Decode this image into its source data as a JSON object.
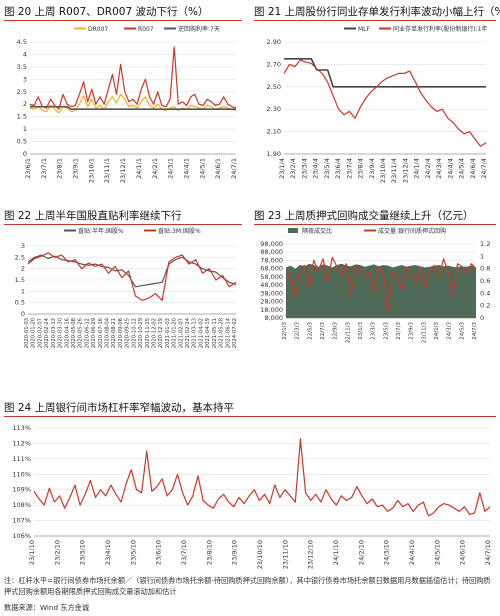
{
  "panels": {
    "p20": {
      "title": "图 20  上周 R007、DR007 波动下行（%）"
    },
    "p21": {
      "title": "图 21  上周股份行同业存单发行利率波动小幅上行（%）"
    },
    "p22": {
      "title": "图 22  上周半年国股直贴利率继续下行"
    },
    "p23": {
      "title": "图 23  上周质押式回购成交量继续上升（亿元）"
    },
    "p24": {
      "title": "图 24  上周银行间市场杠杆率窄幅波动，基本持平"
    }
  },
  "footer": {
    "note": "注：杠杆水平=银行间债券市场托余额／（银行间债券市场托余额-待回购质押式回购余额），其中银行债券市场托余额日数据用月数据插值估计；待回购质押式回购余额用各期限质押式回购成交量滚动加和估计",
    "source": "数据来源：Wind 东方金诚"
  },
  "colors": {
    "orange": "#f2b01e",
    "red": "#c9372c",
    "gray": "#555555",
    "darkgray": "#444444",
    "area": "#4f6b57",
    "title_rule": "#c9372c"
  },
  "chart_data": [
    {
      "id": "p20",
      "type": "line",
      "title": "图 20  上周 R007、DR007 波动下行（%）",
      "ylim": [
        0,
        4.5
      ],
      "yticks": [
        "0",
        "0.5",
        "1",
        "1.5",
        "2",
        "2.5",
        "3",
        "3.5",
        "4",
        "4.5"
      ],
      "x_ticks": [
        "23/6/1",
        "23/7/1",
        "23/8/1",
        "23/9/1",
        "23/10/1",
        "23/11/1",
        "23/12/1",
        "24/1/1",
        "24/2/1",
        "24/3/1",
        "24/4/1",
        "24/5/1",
        "24/6/1",
        "24/7/1"
      ],
      "legend_position": "top",
      "series": [
        {
          "name": "DR007",
          "color": "#f2b01e",
          "values": [
            1.85,
            1.8,
            1.9,
            1.75,
            1.7,
            1.95,
            1.8,
            1.65,
            1.9,
            1.85,
            1.7,
            1.75,
            2.0,
            2.35,
            1.9,
            2.2,
            1.85,
            1.95,
            1.8,
            2.1,
            2.3,
            2.05,
            2.4,
            2.2,
            1.9,
            1.95,
            1.85,
            2.1,
            2.3,
            1.95,
            1.85,
            2.0,
            1.8,
            1.75,
            1.85,
            1.9,
            1.75,
            1.85,
            1.8,
            1.95,
            1.9,
            1.85,
            1.8,
            1.95,
            1.9,
            1.8,
            1.85,
            1.9,
            1.85,
            1.8,
            1.75
          ]
        },
        {
          "name": "R007",
          "color": "#c9372c",
          "values": [
            2.0,
            1.95,
            2.3,
            1.9,
            1.85,
            2.2,
            1.95,
            1.8,
            2.4,
            2.0,
            1.9,
            1.95,
            2.4,
            2.9,
            2.1,
            2.6,
            2.0,
            2.3,
            2.0,
            2.6,
            3.2,
            2.4,
            3.6,
            2.5,
            2.1,
            2.2,
            2.0,
            2.6,
            3.0,
            2.3,
            2.0,
            2.5,
            1.95,
            1.9,
            2.2,
            4.3,
            2.0,
            2.1,
            1.95,
            2.3,
            2.4,
            2.0,
            1.95,
            2.2,
            2.1,
            1.95,
            2.0,
            2.3,
            2.0,
            1.9,
            1.85
          ]
        },
        {
          "name": "逆回购利率:7天",
          "color": "#555555",
          "values": [
            1.9,
            1.9,
            1.9,
            1.9,
            1.9,
            1.9,
            1.9,
            1.9,
            1.9,
            1.9,
            1.8,
            1.8,
            1.8,
            1.8,
            1.8,
            1.8,
            1.8,
            1.8,
            1.8,
            1.8,
            1.8,
            1.8,
            1.8,
            1.8,
            1.8,
            1.8,
            1.8,
            1.8,
            1.8,
            1.8,
            1.8,
            1.8,
            1.8,
            1.8,
            1.8,
            1.8,
            1.8,
            1.8,
            1.8,
            1.8,
            1.8,
            1.8,
            1.8,
            1.8,
            1.8,
            1.8,
            1.8,
            1.8,
            1.8,
            1.8,
            1.8
          ]
        }
      ]
    },
    {
      "id": "p21",
      "type": "line",
      "title": "图 21  上周股份行同业存单发行利率波动小幅上行（%）",
      "ylim": [
        1.9,
        2.9
      ],
      "yticks": [
        "1.90",
        "2.10",
        "2.30",
        "2.50",
        "2.70",
        "2.90"
      ],
      "x_ticks": [
        "23/1/4",
        "23/2/4",
        "23/3/4",
        "23/4/4",
        "23/5/4",
        "23/6/4",
        "23/7/4",
        "23/8/4",
        "23/9/4",
        "23/10/4",
        "23/11/4",
        "23/12/4",
        "24/1/4",
        "24/2/4",
        "24/3/4",
        "24/4/4",
        "24/5/4",
        "24/6/4",
        "24/7/4"
      ],
      "legend_position": "top",
      "series": [
        {
          "name": "MLF",
          "color": "#444444",
          "values": [
            2.75,
            2.75,
            2.75,
            2.75,
            2.75,
            2.75,
            2.65,
            2.65,
            2.65,
            2.5,
            2.5,
            2.5,
            2.5,
            2.5,
            2.5,
            2.5,
            2.5,
            2.5,
            2.5,
            2.5,
            2.5,
            2.5,
            2.5,
            2.5,
            2.5,
            2.5,
            2.5,
            2.5,
            2.5,
            2.5,
            2.5,
            2.5,
            2.5,
            2.5,
            2.5,
            2.5,
            2.5,
            2.5
          ]
        },
        {
          "name": "同业存单发行利率(股份制银行):1年",
          "color": "#c9372c",
          "values": [
            2.62,
            2.7,
            2.68,
            2.74,
            2.72,
            2.71,
            2.66,
            2.62,
            2.54,
            2.42,
            2.3,
            2.25,
            2.28,
            2.22,
            2.32,
            2.4,
            2.46,
            2.5,
            2.55,
            2.58,
            2.6,
            2.62,
            2.62,
            2.64,
            2.55,
            2.45,
            2.38,
            2.32,
            2.28,
            2.3,
            2.22,
            2.18,
            2.12,
            2.08,
            2.1,
            2.03,
            1.97,
            2.0
          ]
        }
      ]
    },
    {
      "id": "p22",
      "type": "line",
      "title": "图 22  上周半年国股直贴利率继续下行",
      "ylim": [
        0,
        3
      ],
      "yticks": [
        "0",
        "0.5",
        "1",
        "1.5",
        "2",
        "2.5",
        "3"
      ],
      "x_ticks": [
        "2020-01-03",
        "2020-01-20",
        "2020-02-07",
        "2020-02-24",
        "2020-03-13",
        "2020-03-30",
        "2020-04-16",
        "2020-05-08",
        "2020-05-26",
        "2020-06-12",
        "2020-06-29",
        "2020-07-16",
        "2020-08-04",
        "2020-08-21",
        "2020-09-08",
        "2020-09-25",
        "2020-10-12",
        "2020-10-29",
        "2020-11-15",
        "2020-12-02",
        "2020-12-19",
        "2021-01-03",
        "2021-01-20",
        "2021-02-07",
        "2021-02-24",
        "2021-03-13",
        "2021-04-02",
        "2021-04-19",
        "2021-05-11",
        "2021-05-28",
        "2021-06-14",
        "2024-07-02"
      ],
      "legend_position": "top",
      "series": [
        {
          "name": "直贴:半年:国股%",
          "color": "#555555",
          "values": [
            2.3,
            2.5,
            2.6,
            2.45,
            2.55,
            2.4,
            2.35,
            2.3,
            2.2,
            2.15,
            2.2,
            2.1,
            2.05,
            1.9,
            1.95,
            1.7,
            1.2,
            1.25,
            1.3,
            1.35,
            1.4,
            2.2,
            2.4,
            2.5,
            2.3,
            2.2,
            2.0,
            1.9,
            1.85,
            1.6,
            1.4,
            1.3
          ]
        },
        {
          "name": "直贴:3M:国股%",
          "color": "#c9372c",
          "values": [
            2.2,
            2.45,
            2.55,
            2.7,
            2.5,
            2.6,
            2.3,
            2.4,
            2.0,
            2.25,
            2.1,
            2.2,
            1.8,
            2.1,
            1.6,
            1.9,
            0.8,
            0.6,
            0.7,
            0.9,
            0.6,
            2.3,
            2.5,
            2.6,
            2.2,
            2.4,
            1.8,
            2.0,
            1.5,
            1.7,
            1.2,
            1.4
          ]
        }
      ]
    },
    {
      "id": "p23",
      "type": "area",
      "title": "图 23  上周质押式回购成交量继续上升（亿元）",
      "ylim": [
        8000,
        98000
      ],
      "yticks": [
        "8,000",
        "18,000",
        "28,000",
        "38,000",
        "48,000",
        "58,000",
        "68,000",
        "78,000",
        "88,000",
        "98,000"
      ],
      "y2lim": [
        0,
        1.2
      ],
      "y2ticks": [
        "0",
        "0.2",
        "0.4",
        "0.6",
        "0.8",
        "1",
        "1.2"
      ],
      "x_ticks": [
        "22/1/3",
        "22/3/3",
        "22/5/3",
        "22/7/3",
        "22/9/3",
        "22/11/3",
        "23/1/3",
        "23/3/3",
        "23/5/3",
        "23/7/3",
        "23/9/3",
        "23/11/3",
        "24/1/3",
        "24/3/3",
        "24/5/3",
        "24/7/3"
      ],
      "legend_position": "top",
      "series": [
        {
          "name": "隔夜成交比",
          "color": "#4f6b57",
          "axis": "right",
          "values": [
            0.82,
            0.85,
            0.8,
            0.86,
            0.84,
            0.88,
            0.86,
            0.83,
            0.87,
            0.85,
            0.82,
            0.86,
            0.88,
            0.85,
            0.84,
            0.87,
            0.86,
            0.83,
            0.85,
            0.87,
            0.84,
            0.86,
            0.85,
            0.82,
            0.84,
            0.86,
            0.83,
            0.85,
            0.86,
            0.84,
            0.82,
            0.83,
            0.85,
            0.86,
            0.84,
            0.85,
            0.83,
            0.82,
            0.84,
            0.83,
            0.85,
            0.82
          ]
        },
        {
          "name": "成交量:银行间质押式回购",
          "color": "#c9372c",
          "axis": "left",
          "values": [
            56000,
            62000,
            34000,
            68000,
            72000,
            45000,
            78000,
            66000,
            80000,
            52000,
            82000,
            70000,
            60000,
            74000,
            36000,
            72000,
            66000,
            58000,
            64000,
            40000,
            70000,
            62000,
            16000,
            64000,
            58000,
            42000,
            70000,
            61000,
            52000,
            68000,
            44000,
            66000,
            72000,
            58000,
            80000,
            63000,
            34000,
            74000,
            70000,
            62000,
            74000,
            68000
          ]
        }
      ]
    },
    {
      "id": "p24",
      "type": "line",
      "title": "图 24  上周银行间市场杠杆率窄幅波动，基本持平",
      "ylim": [
        106,
        113
      ],
      "yticks": [
        "106%",
        "107%",
        "108%",
        "109%",
        "110%",
        "111%",
        "112%",
        "113%"
      ],
      "x_ticks": [
        "23/1/10",
        "23/2/10",
        "23/3/10",
        "23/4/10",
        "23/5/10",
        "23/6/10",
        "23/7/10",
        "23/8/10",
        "23/9/10",
        "23/10/10",
        "23/11/10",
        "23/12/10",
        "24/1/10",
        "24/2/10",
        "24/3/10",
        "24/4/10",
        "24/5/10",
        "24/6/10",
        "24/7/10"
      ],
      "series": [
        {
          "name": "杠杆率",
          "color": "#c9372c",
          "values": [
            108.9,
            108.4,
            108.0,
            109.1,
            108.2,
            108.6,
            107.8,
            108.5,
            109.3,
            108.0,
            108.7,
            109.6,
            108.5,
            109.0,
            108.6,
            109.3,
            108.7,
            108.2,
            109.4,
            110.3,
            109.0,
            108.8,
            111.5,
            108.9,
            109.2,
            109.7,
            108.6,
            109.0,
            110.0,
            108.8,
            108.0,
            108.6,
            109.9,
            108.3,
            108.0,
            107.8,
            108.4,
            108.7,
            108.2,
            107.9,
            108.5,
            108.1,
            108.6,
            109.0,
            108.3,
            108.7,
            108.1,
            109.3,
            108.5,
            109.0,
            108.6,
            108.2,
            112.3,
            108.8,
            108.3,
            108.7,
            108.2,
            109.0,
            108.4,
            108.0,
            108.6,
            108.3,
            108.5,
            109.2,
            108.6,
            108.1,
            108.4,
            107.9,
            108.0,
            107.6,
            107.8,
            108.3,
            107.9,
            108.1,
            107.6,
            108.0,
            108.2,
            107.3,
            107.5,
            107.9,
            108.1,
            108.0,
            107.8,
            107.6,
            107.9,
            107.4,
            107.5,
            108.8,
            107.6,
            107.9
          ]
        }
      ]
    }
  ]
}
